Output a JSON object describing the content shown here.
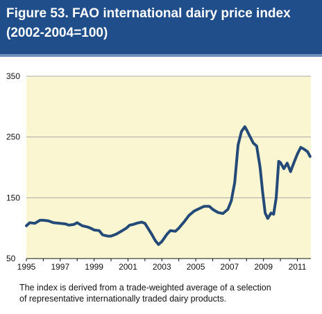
{
  "figure": {
    "title_line1": "Figure 53.  FAO international dairy price index",
    "title_line2": "(2002-2004=100)"
  },
  "caption_line1": "The index is derived from a trade-weighted average of a selection",
  "caption_line2": "of representative internationally traded dairy products.",
  "colors": {
    "header_bg": "#1f4e8a",
    "plot_bg": "#fbf6d2",
    "line": "#244a78",
    "grid": "#a9a9a9"
  },
  "chart_data": {
    "type": "line",
    "title": "Figure 53.  FAO international dairy price index (2002-2004=100)",
    "xlabel": "",
    "ylabel": "",
    "xlim": [
      1995,
      2011.8
    ],
    "ylim": [
      50,
      350
    ],
    "yticks": [
      50,
      150,
      250,
      350
    ],
    "xticks": [
      1995,
      1997,
      1999,
      2001,
      2003,
      2005,
      2007,
      2009,
      2011
    ],
    "grid": true,
    "series": [
      {
        "name": "",
        "x": [
          1995.0,
          1995.2,
          1995.5,
          1995.8,
          1996.0,
          1996.3,
          1996.6,
          1997.0,
          1997.3,
          1997.5,
          1997.8,
          1998.0,
          1998.3,
          1998.6,
          1998.8,
          1999.0,
          1999.3,
          1999.5,
          1999.8,
          2000.0,
          2000.3,
          2000.6,
          2000.9,
          2001.1,
          2001.3,
          2001.5,
          2001.8,
          2002.0,
          2002.2,
          2002.4,
          2002.6,
          2002.8,
          2003.0,
          2003.3,
          2003.5,
          2003.8,
          2004.0,
          2004.3,
          2004.6,
          2004.9,
          2005.2,
          2005.5,
          2005.8,
          2006.0,
          2006.3,
          2006.6,
          2006.9,
          2007.1,
          2007.3,
          2007.5,
          2007.7,
          2007.9,
          2008.0,
          2008.2,
          2008.4,
          2008.6,
          2008.8,
          2008.95,
          2009.1,
          2009.25,
          2009.45,
          2009.6,
          2009.75,
          2009.9,
          2010.0,
          2010.2,
          2010.4,
          2010.6,
          2010.8,
          2011.0,
          2011.2,
          2011.4,
          2011.6,
          2011.75
        ],
        "values": [
          104,
          109,
          108,
          113,
          113,
          112,
          109,
          108,
          107,
          105,
          106,
          109,
          104,
          102,
          100,
          97,
          96,
          89,
          87,
          87,
          90,
          95,
          100,
          105,
          106,
          108,
          110,
          108,
          99,
          90,
          80,
          73,
          78,
          90,
          96,
          95,
          100,
          110,
          121,
          128,
          132,
          136,
          136,
          131,
          126,
          124,
          131,
          145,
          175,
          237,
          259,
          267,
          262,
          251,
          240,
          235,
          200,
          160,
          125,
          116,
          125,
          123,
          150,
          210,
          208,
          198,
          207,
          193,
          208,
          222,
          233,
          230,
          226,
          218
        ]
      }
    ]
  }
}
